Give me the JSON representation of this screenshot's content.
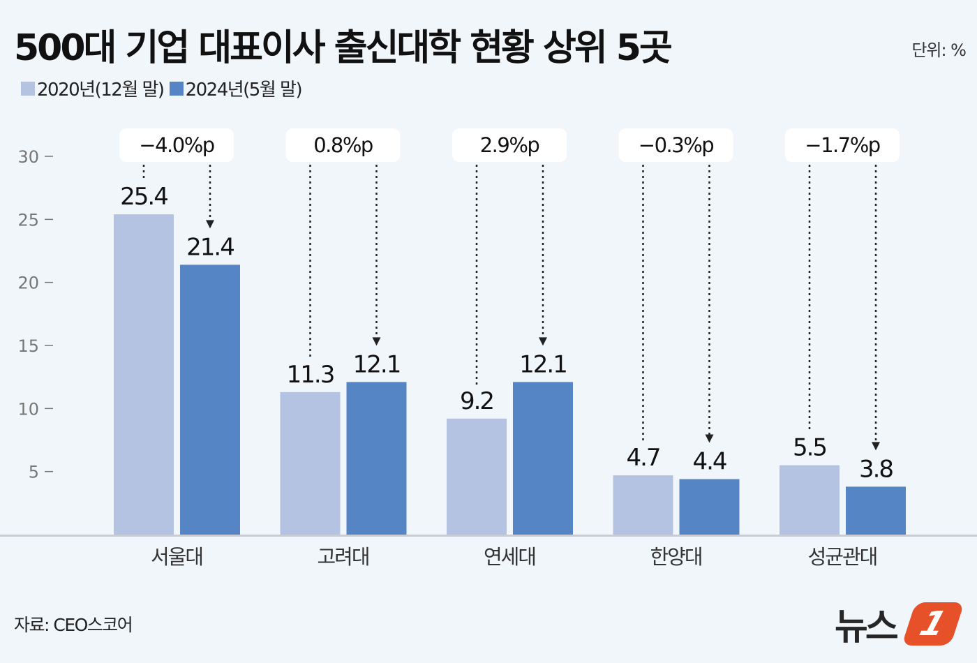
{
  "title": "500대 기업 대표이사 출신대학 현황 상위 5곳",
  "unit": "단위: %",
  "source": "자료: CEO스코어",
  "logo": "뉴스1",
  "colors": {
    "series_2020": "#b4c3e2",
    "series_2024": "#5585c5",
    "background": "#f1f6fa",
    "logo_accent": "#e6512a"
  },
  "chart_data": {
    "type": "bar",
    "categories": [
      "서울대",
      "고려대",
      "연세대",
      "한양대",
      "성균관대"
    ],
    "series": [
      {
        "name": "2020년(12월 말)",
        "values": [
          25.4,
          11.3,
          9.2,
          4.7,
          5.5
        ]
      },
      {
        "name": "2024년(5월 말)",
        "values": [
          21.4,
          12.1,
          12.1,
          4.4,
          3.8
        ]
      }
    ],
    "changes": [
      "−4.0%p",
      "0.8%p",
      "2.9%p",
      "−0.3%p",
      "−1.7%p"
    ],
    "yticks": [
      5,
      10,
      15,
      20,
      25,
      30
    ],
    "ylim": [
      0,
      30
    ],
    "grid": false,
    "legend": "top-left"
  }
}
